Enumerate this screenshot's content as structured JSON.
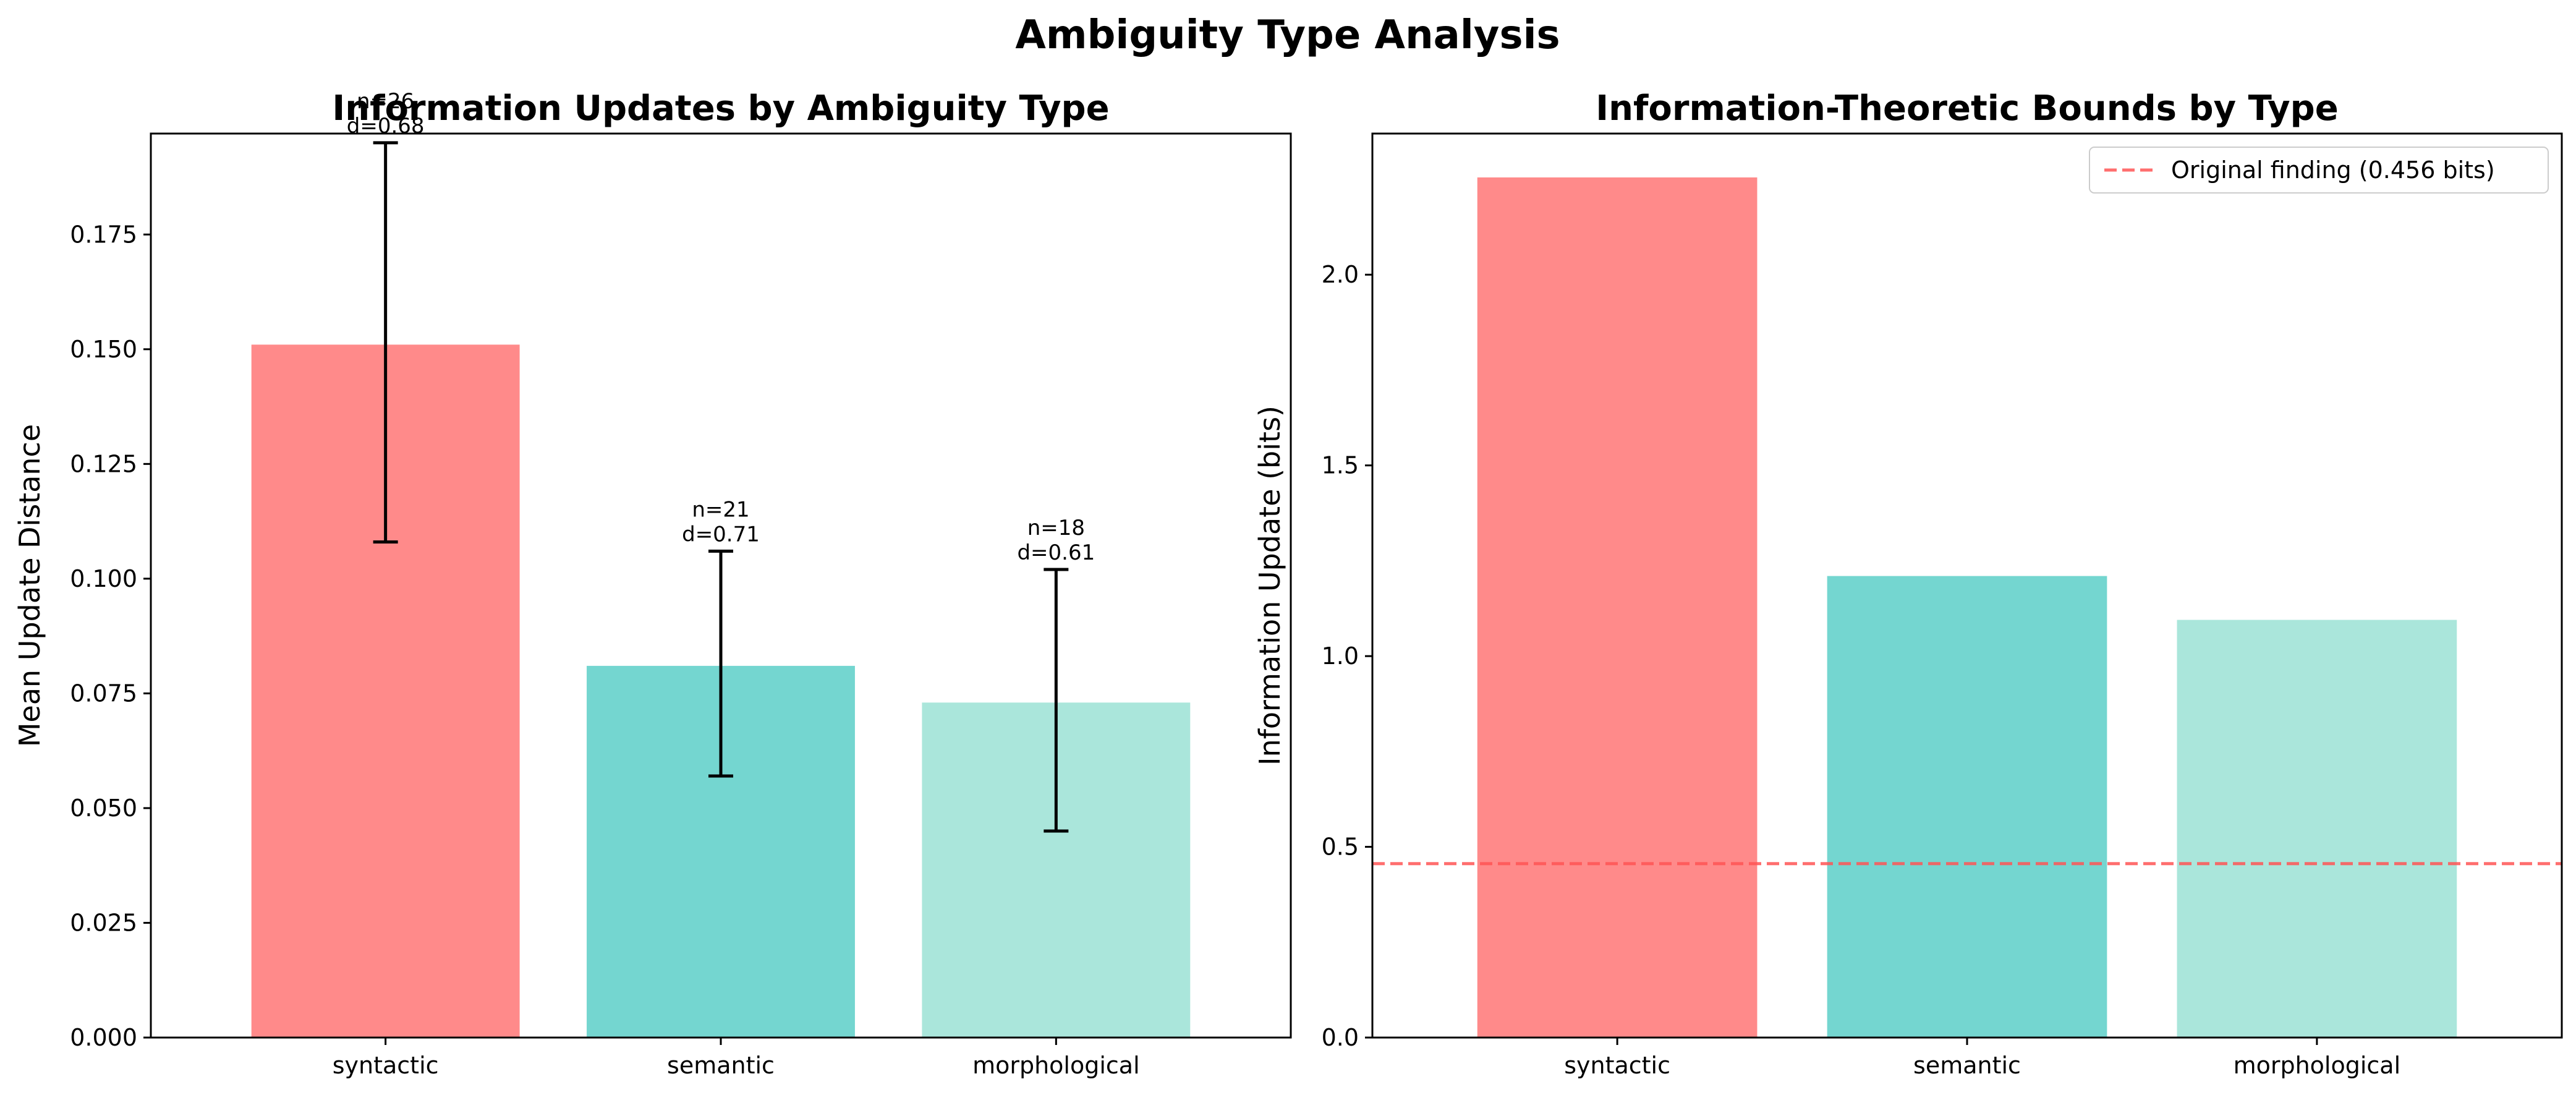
{
  "figure": {
    "title": "Ambiguity Type Analysis"
  },
  "chart_data": [
    {
      "type": "bar",
      "title": "Information Updates by Ambiguity Type",
      "xlabel": "",
      "ylabel": "Mean Update Distance",
      "categories": [
        "syntactic",
        "semantic",
        "morphological"
      ],
      "values": [
        0.151,
        0.081,
        0.073
      ],
      "error_lower": [
        0.108,
        0.057,
        0.045
      ],
      "error_upper": [
        0.195,
        0.106,
        0.102
      ],
      "annotations": [
        [
          "n=26",
          "d=0.68"
        ],
        [
          "n=21",
          "d=0.71"
        ],
        [
          "n=18",
          "d=0.61"
        ]
      ],
      "colors": [
        "#FF8A8A",
        "#74D6D0",
        "#AAE6DB"
      ],
      "ylim": [
        0,
        0.197
      ],
      "yticks": [
        0.0,
        0.025,
        0.05,
        0.075,
        0.1,
        0.125,
        0.15,
        0.175
      ],
      "ytick_labels": [
        "0.000",
        "0.025",
        "0.050",
        "0.075",
        "0.100",
        "0.125",
        "0.150",
        "0.175"
      ],
      "grid": false
    },
    {
      "type": "bar",
      "title": "Information-Theoretic Bounds by Type",
      "xlabel": "",
      "ylabel": "Information Update (bits)",
      "categories": [
        "syntactic",
        "semantic",
        "morphological"
      ],
      "values": [
        2.255,
        1.21,
        1.095
      ],
      "colors": [
        "#FF8A8A",
        "#74D6D0",
        "#AAE6DB"
      ],
      "reference_line": {
        "value": 0.456,
        "label": "Original finding (0.456 bits)",
        "color": "#FF5555",
        "style": "dashed"
      },
      "ylim": [
        0,
        2.37
      ],
      "yticks": [
        0.0,
        0.5,
        1.0,
        1.5,
        2.0
      ],
      "ytick_labels": [
        "0.0",
        "0.5",
        "1.0",
        "1.5",
        "2.0"
      ],
      "legend_position": "upper-right",
      "grid": false
    }
  ]
}
